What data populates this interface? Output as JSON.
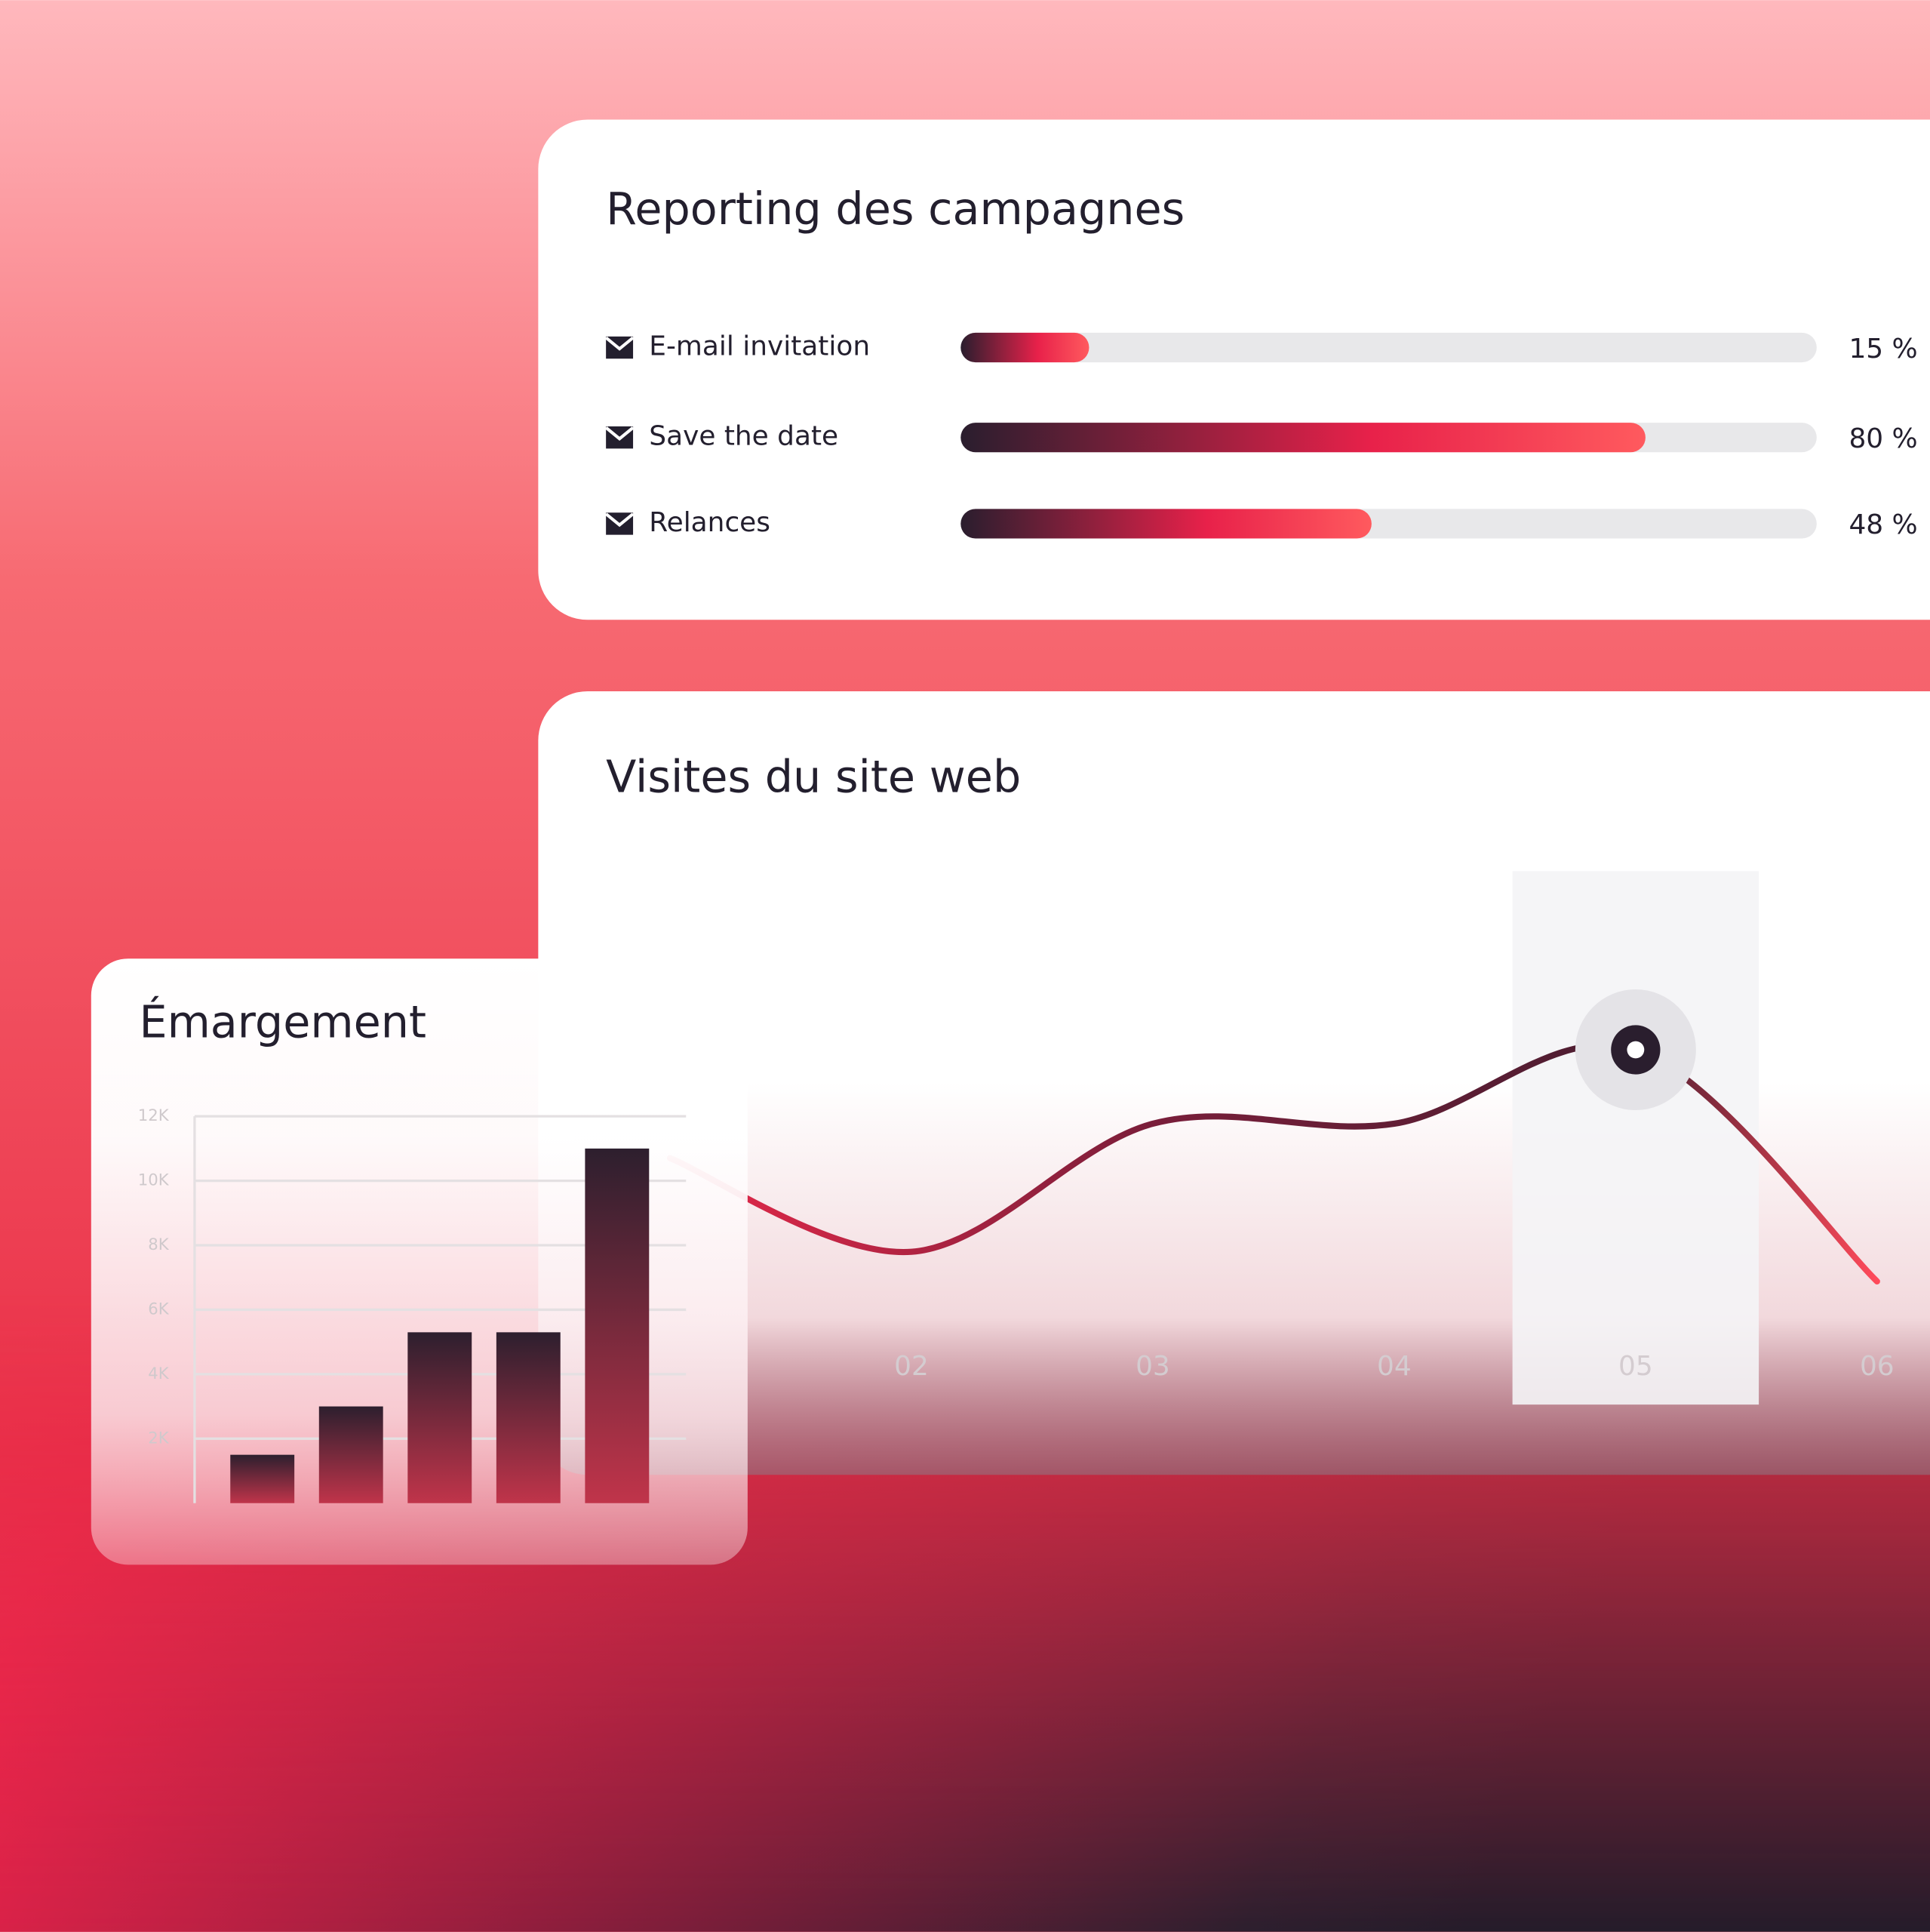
{
  "chart_data": [
    {
      "type": "progress",
      "title": "Reporting des campagnes",
      "categories": [
        "E-mail invitation",
        "Save the date",
        "Relances"
      ],
      "values": [
        15,
        80,
        48
      ],
      "value_labels": [
        "15 %",
        "80 %",
        "48 %"
      ],
      "xlim": [
        0,
        100
      ]
    },
    {
      "type": "line",
      "title": "Visites du site web",
      "categories": [
        null,
        "02",
        "03",
        "04",
        "05",
        "06"
      ],
      "values": [
        40,
        21,
        47,
        47,
        62,
        15
      ],
      "ylim": [
        0,
        100
      ],
      "highlight": 4
    },
    {
      "type": "bar",
      "title": "Émargement",
      "categories": [
        null,
        null,
        null,
        null,
        null
      ],
      "values": [
        1500,
        3000,
        5300,
        5300,
        11000
      ],
      "ylim": [
        0,
        12000
      ],
      "yticks": [
        {
          "value": 2000,
          "label": "2K"
        },
        {
          "value": 4000,
          "label": "4K"
        },
        {
          "value": 6000,
          "label": "6K"
        },
        {
          "value": 8000,
          "label": "8K"
        },
        {
          "value": 10000,
          "label": "10K"
        },
        {
          "value": 12000,
          "label": "12K"
        }
      ],
      "grid": true
    }
  ]
}
